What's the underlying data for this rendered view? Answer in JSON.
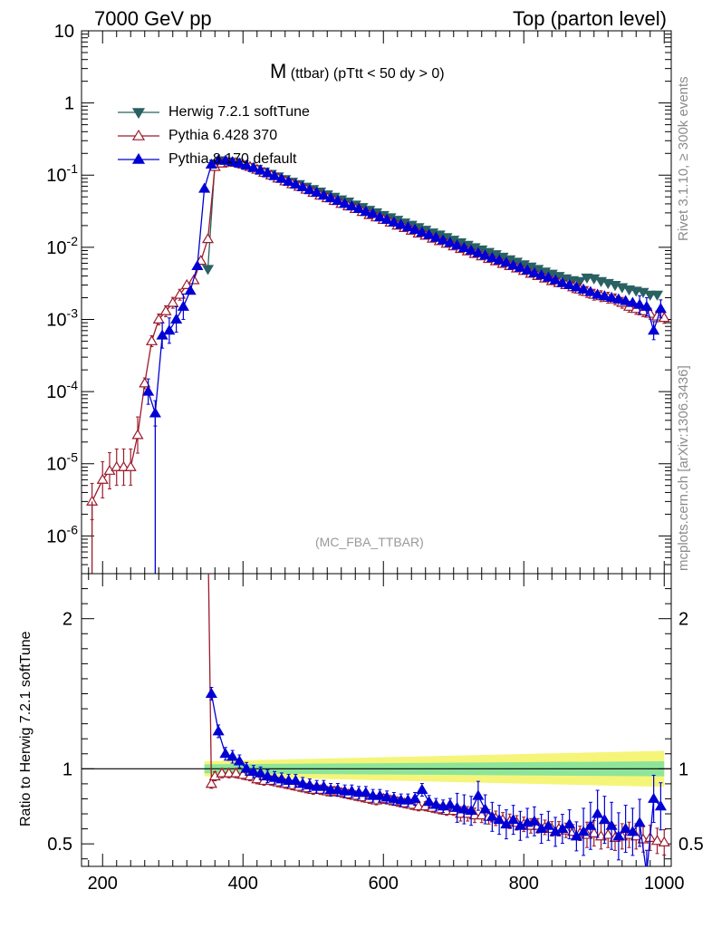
{
  "header": {
    "left": "7000 GeV pp",
    "right": "Top (parton level)"
  },
  "side_labels": {
    "rivet": "Rivet 3.1.10, ≥ 300k events",
    "mcplots": "mcplots.cern.ch [arXiv:1306.3436]"
  },
  "plot_title": {
    "main": "M",
    "sub": "(ttbar) (pTtt < 50 dy > 0)"
  },
  "analysis_label": "(MC_FBA_TTBAR)",
  "ratio_ylabel": "Ratio to Herwig 7.2.1 softTune",
  "legend": [
    {
      "label": "Herwig 7.2.1 softTune",
      "color": "#2a6163",
      "marker": "triangle-down-filled"
    },
    {
      "label": "Pythia 6.428 370",
      "color": "#9b1a2a",
      "marker": "triangle-up-open"
    },
    {
      "label": "Pythia 8.170 default",
      "color": "#0000d4",
      "marker": "triangle-up-filled"
    }
  ],
  "colors": {
    "herwig": "#2a6163",
    "pythia6": "#9b1a2a",
    "pythia8": "#0000d4",
    "band_outer": "#f5f57a",
    "band_inner": "#8ee59a"
  },
  "chart_data": [
    {
      "type": "line",
      "title": "M (ttbar) (pTtt < 50 dy > 0)",
      "xlabel": "",
      "ylabel": "",
      "xscale": "linear",
      "yscale": "log",
      "xlim": [
        170,
        1010
      ],
      "ylim": [
        3e-07,
        10
      ],
      "x_ticks": [
        "200",
        "400",
        "600",
        "800",
        "1000"
      ],
      "y_ticks": [
        "10^-6",
        "10^-5",
        "10^-4",
        "10^-3",
        "10^-2",
        "10^-1",
        "1",
        "10"
      ],
      "legend_position": "top-left",
      "series": [
        {
          "name": "Herwig 7.2.1 softTune",
          "x": [
            350,
            360,
            370,
            380,
            390,
            400,
            410,
            420,
            430,
            440,
            450,
            460,
            470,
            480,
            490,
            500,
            510,
            520,
            530,
            540,
            550,
            560,
            570,
            580,
            590,
            600,
            610,
            620,
            630,
            640,
            650,
            660,
            670,
            680,
            690,
            700,
            710,
            720,
            730,
            740,
            750,
            760,
            770,
            780,
            790,
            800,
            810,
            820,
            830,
            840,
            850,
            860,
            870,
            880,
            890,
            900,
            910,
            920,
            930,
            940,
            950,
            960,
            970,
            980,
            990
          ],
          "y": [
            0.005,
            0.145,
            0.16,
            0.155,
            0.15,
            0.14,
            0.13,
            0.122,
            0.112,
            0.104,
            0.096,
            0.088,
            0.081,
            0.075,
            0.069,
            0.064,
            0.059,
            0.054,
            0.05,
            0.046,
            0.043,
            0.039,
            0.036,
            0.033,
            0.0305,
            0.028,
            0.026,
            0.024,
            0.022,
            0.0205,
            0.019,
            0.0175,
            0.016,
            0.015,
            0.0138,
            0.0127,
            0.0117,
            0.0108,
            0.01,
            0.0093,
            0.0086,
            0.008,
            0.0074,
            0.0068,
            0.0063,
            0.0058,
            0.0054,
            0.005,
            0.0046,
            0.0043,
            0.004,
            0.0037,
            0.0035,
            0.0034,
            0.0038,
            0.0037,
            0.0034,
            0.0032,
            0.003,
            0.0028,
            0.0026,
            0.0025,
            0.0024,
            0.0022,
            0.0022
          ]
        },
        {
          "name": "Pythia 6.428 370",
          "x": [
            185,
            200,
            210,
            220,
            230,
            240,
            250,
            260,
            270,
            280,
            290,
            300,
            310,
            320,
            330,
            340,
            350,
            360,
            370,
            380,
            390,
            400,
            410,
            420,
            430,
            440,
            450,
            460,
            470,
            480,
            490,
            500,
            510,
            520,
            530,
            540,
            550,
            560,
            570,
            580,
            590,
            600,
            610,
            620,
            630,
            640,
            650,
            660,
            670,
            680,
            690,
            700,
            710,
            720,
            730,
            740,
            750,
            760,
            770,
            780,
            790,
            800,
            810,
            820,
            830,
            840,
            850,
            860,
            870,
            880,
            890,
            900,
            910,
            920,
            930,
            940,
            950,
            960,
            970,
            980,
            990,
            1000
          ],
          "y": [
            3e-06,
            6e-06,
            8e-06,
            9e-06,
            9e-06,
            9e-06,
            2.5e-05,
            0.00013,
            0.0005,
            0.001,
            0.0013,
            0.0017,
            0.0022,
            0.003,
            0.0035,
            0.0065,
            0.013,
            0.13,
            0.145,
            0.15,
            0.148,
            0.14,
            0.13,
            0.119,
            0.108,
            0.099,
            0.09,
            0.082,
            0.075,
            0.069,
            0.063,
            0.057,
            0.052,
            0.048,
            0.044,
            0.04,
            0.037,
            0.034,
            0.031,
            0.028,
            0.026,
            0.024,
            0.022,
            0.02,
            0.0185,
            0.017,
            0.0155,
            0.0145,
            0.0132,
            0.0122,
            0.0112,
            0.0103,
            0.0095,
            0.0088,
            0.0081,
            0.0075,
            0.0069,
            0.0064,
            0.0059,
            0.0055,
            0.0051,
            0.0047,
            0.0043,
            0.004,
            0.0037,
            0.0034,
            0.0032,
            0.003,
            0.0028,
            0.0026,
            0.0024,
            0.0022,
            0.0021,
            0.002,
            0.0019,
            0.0017,
            0.0015,
            0.0014,
            0.0013,
            0.0012,
            0.0011,
            0.00105
          ]
        },
        {
          "name": "Pythia 8.170 default",
          "x": [
            265,
            275,
            285,
            295,
            305,
            315,
            325,
            335,
            345,
            355,
            365,
            375,
            385,
            395,
            405,
            415,
            425,
            435,
            445,
            455,
            465,
            475,
            485,
            495,
            505,
            515,
            525,
            535,
            545,
            555,
            565,
            575,
            585,
            595,
            605,
            615,
            625,
            635,
            645,
            655,
            665,
            675,
            685,
            695,
            705,
            715,
            725,
            735,
            745,
            755,
            765,
            775,
            785,
            795,
            805,
            815,
            825,
            835,
            845,
            855,
            865,
            875,
            885,
            895,
            905,
            915,
            925,
            935,
            945,
            955,
            965,
            975,
            985,
            995
          ],
          "y": [
            0.0001,
            5e-05,
            0.0006,
            0.0007,
            0.001,
            0.0015,
            0.0025,
            0.0055,
            0.065,
            0.14,
            0.16,
            0.158,
            0.152,
            0.145,
            0.136,
            0.126,
            0.116,
            0.106,
            0.097,
            0.089,
            0.081,
            0.074,
            0.068,
            0.062,
            0.057,
            0.052,
            0.048,
            0.044,
            0.04,
            0.037,
            0.034,
            0.031,
            0.029,
            0.026,
            0.024,
            0.022,
            0.0205,
            0.019,
            0.0175,
            0.016,
            0.0148,
            0.0136,
            0.0125,
            0.0115,
            0.0106,
            0.0098,
            0.009,
            0.0083,
            0.0077,
            0.0071,
            0.0066,
            0.0061,
            0.0056,
            0.0052,
            0.0048,
            0.0044,
            0.0041,
            0.0038,
            0.0035,
            0.0032,
            0.003,
            0.0028,
            0.0026,
            0.0024,
            0.0022,
            0.0021,
            0.002,
            0.0019,
            0.0018,
            0.0017,
            0.0016,
            0.0015,
            0.0007,
            0.0014
          ]
        }
      ]
    },
    {
      "type": "line",
      "title": "",
      "xlabel": "",
      "ylabel": "Ratio to Herwig 7.2.1 softTune",
      "xscale": "linear",
      "yscale": "linear",
      "xlim": [
        170,
        1010
      ],
      "ylim": [
        0.35,
        2.3
      ],
      "x_ticks": [
        "200",
        "400",
        "600",
        "800",
        "1000"
      ],
      "y_ticks": [
        "0.5",
        "1",
        "2"
      ],
      "reference_line": 1,
      "uncertainty_band": {
        "x": [
          345,
          1000
        ],
        "inner": [
          0.03,
          0.05
        ],
        "outer": [
          0.05,
          0.12
        ]
      },
      "series": [
        {
          "name": "Pythia 6.428 370",
          "x": [
            350,
            355,
            360,
            370,
            380,
            390,
            400,
            410,
            420,
            430,
            440,
            450,
            460,
            470,
            480,
            490,
            500,
            510,
            520,
            530,
            540,
            550,
            560,
            570,
            580,
            590,
            600,
            610,
            620,
            630,
            640,
            650,
            660,
            670,
            680,
            690,
            700,
            710,
            720,
            730,
            740,
            750,
            760,
            770,
            780,
            790,
            800,
            810,
            820,
            830,
            840,
            850,
            860,
            870,
            880,
            890,
            900,
            910,
            920,
            930,
            940,
            950,
            960,
            970,
            980,
            990,
            1000
          ],
          "y": [
            2.6,
            0.9,
            0.95,
            0.97,
            0.97,
            0.97,
            0.96,
            0.95,
            0.93,
            0.92,
            0.92,
            0.91,
            0.9,
            0.89,
            0.88,
            0.87,
            0.86,
            0.86,
            0.85,
            0.85,
            0.84,
            0.83,
            0.82,
            0.81,
            0.8,
            0.79,
            0.8,
            0.79,
            0.78,
            0.77,
            0.76,
            0.75,
            0.75,
            0.74,
            0.73,
            0.72,
            0.72,
            0.7,
            0.7,
            0.69,
            0.69,
            0.68,
            0.67,
            0.66,
            0.65,
            0.64,
            0.63,
            0.62,
            0.62,
            0.61,
            0.6,
            0.6,
            0.59,
            0.58,
            0.57,
            0.56,
            0.57,
            0.55,
            0.56,
            0.54,
            0.55,
            0.56,
            0.55,
            0.53,
            0.54,
            0.52,
            0.51
          ]
        },
        {
          "name": "Pythia 8.170 default",
          "x": [
            355,
            365,
            375,
            385,
            395,
            405,
            415,
            425,
            435,
            445,
            455,
            465,
            475,
            485,
            495,
            505,
            515,
            525,
            535,
            545,
            555,
            565,
            575,
            585,
            595,
            605,
            615,
            625,
            635,
            645,
            655,
            665,
            675,
            685,
            695,
            705,
            715,
            725,
            735,
            745,
            755,
            765,
            775,
            785,
            795,
            805,
            815,
            825,
            835,
            845,
            855,
            865,
            875,
            885,
            895,
            905,
            915,
            925,
            935,
            945,
            955,
            965,
            975,
            985,
            995
          ],
          "y": [
            1.5,
            1.25,
            1.1,
            1.08,
            1.05,
            1.0,
            0.98,
            0.97,
            0.95,
            0.94,
            0.93,
            0.92,
            0.92,
            0.9,
            0.89,
            0.88,
            0.88,
            0.86,
            0.86,
            0.85,
            0.85,
            0.84,
            0.84,
            0.82,
            0.82,
            0.81,
            0.8,
            0.79,
            0.79,
            0.8,
            0.86,
            0.78,
            0.76,
            0.75,
            0.76,
            0.74,
            0.73,
            0.72,
            0.82,
            0.73,
            0.68,
            0.66,
            0.63,
            0.66,
            0.62,
            0.64,
            0.65,
            0.6,
            0.62,
            0.58,
            0.6,
            0.63,
            0.55,
            0.58,
            0.62,
            0.7,
            0.66,
            0.62,
            0.55,
            0.6,
            0.58,
            0.64,
            0.3,
            0.8,
            0.75
          ]
        }
      ]
    }
  ]
}
